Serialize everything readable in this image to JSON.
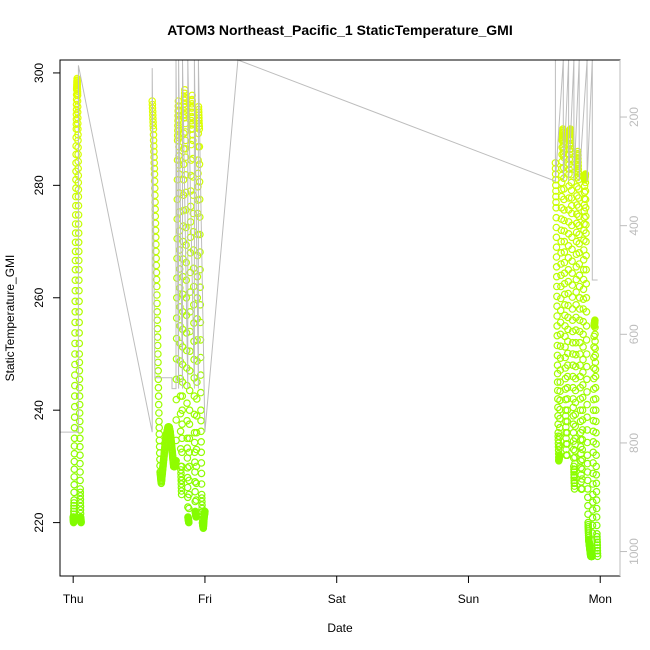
{
  "chart_data": {
    "type": "scatter",
    "title": "ATOM3 Northeast_Pacific_1 StaticTemperature_GMI",
    "xlabel": "Date",
    "ylabel": "StaticTemperature_GMI",
    "x_ticks": [
      "Thu",
      "Fri",
      "Sat",
      "Sun",
      "Mon"
    ],
    "x_range_days": [
      -0.1,
      4.15
    ],
    "y_ticks": [
      220,
      240,
      260,
      280,
      300
    ],
    "ylim": [
      210.5,
      302.3
    ],
    "y2_ticks": [
      200,
      400,
      600,
      800,
      1000
    ],
    "y2lim": [
      1045,
      95
    ],
    "grid": false,
    "legend": "none",
    "colors": {
      "axis": "#000000",
      "pressure_line": "#bdbdbd",
      "low_temp_color": "#7cfc00",
      "high_temp_color": "#e6ff00"
    },
    "segments": [
      {
        "temperature": [
          221,
          220,
          224,
          235,
          250,
          265,
          278,
          290,
          297,
          299,
          296,
          288,
          278,
          265,
          250,
          238,
          226,
          221,
          220
        ],
        "day_start": 0.0,
        "day_end": 0.06
      },
      {
        "temperature": [
          295,
          290,
          282,
          272,
          262,
          250,
          238,
          229,
          227,
          229,
          231,
          233,
          235,
          236,
          237,
          237,
          236,
          234,
          232,
          230,
          230,
          231
        ],
        "day_start": 0.6,
        "day_end": 0.78
      },
      {
        "temperature": [
          231,
          260,
          288,
          295,
          282,
          255,
          230,
          225,
          245,
          270,
          292,
          297,
          285,
          260,
          235,
          221,
          220,
          240,
          268,
          290,
          296,
          288,
          262,
          236,
          222,
          221,
          245,
          275,
          294,
          290,
          265,
          240,
          225,
          220,
          219,
          221,
          222
        ],
        "day_start": 0.78,
        "day_end": 1.0
      },
      {
        "temperature": [
          284,
          276,
          262,
          248,
          236,
          231,
          232,
          245,
          262,
          278,
          288,
          290,
          285,
          270,
          255,
          240,
          232,
          232,
          248,
          265,
          282,
          289,
          290,
          286,
          275,
          258,
          242,
          230,
          226,
          235,
          252,
          270,
          283,
          286,
          281,
          268,
          252,
          236,
          226,
          226,
          240,
          258,
          272,
          281,
          282,
          270,
          250,
          232,
          220,
          217,
          216,
          215,
          214,
          214,
          214,
          225,
          240,
          255,
          256,
          246,
          230,
          218,
          214
        ],
        "day_start": 3.66,
        "day_end": 3.98
      }
    ],
    "pressure_profile": {
      "days": [
        -0.1,
        0.02,
        0.03,
        0.04,
        0.04,
        0.6,
        0.6,
        0.62,
        0.62,
        0.75,
        0.75,
        0.78,
        0.78,
        0.8,
        0.8,
        0.83,
        0.83,
        0.87,
        0.87,
        0.92,
        0.92,
        0.95,
        0.95,
        1.0,
        1.0,
        1.25,
        3.66,
        3.66,
        3.66,
        3.72,
        3.72,
        3.76,
        3.76,
        3.8,
        3.8,
        3.84,
        3.84,
        3.9,
        3.9,
        3.94,
        3.94,
        3.98
      ],
      "pressure": [
        780,
        780,
        780,
        780,
        105,
        780,
        110,
        680,
        680,
        680,
        700,
        700,
        95,
        700,
        95,
        700,
        95,
        700,
        95,
        700,
        95,
        700,
        95,
        780,
        780,
        95,
        318,
        95,
        318,
        95,
        318,
        95,
        318,
        95,
        318,
        95,
        318,
        95,
        318,
        95,
        500,
        500
      ]
    }
  }
}
